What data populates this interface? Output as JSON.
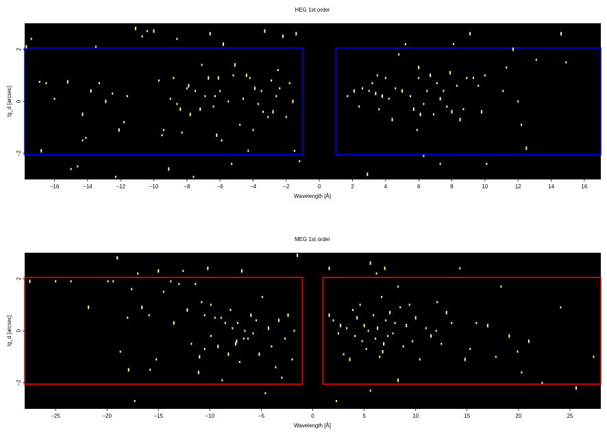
{
  "chart_data": [
    {
      "type": "scatter",
      "title": "HEG 1st order",
      "xlabel": "Wavelength [Å]",
      "ylabel": "tg_d [arcsec]",
      "xlim": [
        -17.8,
        17.0
      ],
      "ylim": [
        -3.0,
        3.0
      ],
      "xticks": [
        -16,
        -14,
        -12,
        -10,
        -8,
        -6,
        -4,
        -2,
        0,
        2,
        4,
        6,
        8,
        10,
        12,
        14,
        16
      ],
      "yticks": [
        -2,
        0,
        2
      ],
      "background": "#000000",
      "point_color": "#ffff80",
      "region_color": "#0000ff",
      "regions": [
        {
          "x": [
            -17.8,
            -1.0
          ],
          "y": [
            -2.05,
            2.05
          ]
        },
        {
          "x": [
            1.0,
            17.0
          ],
          "y": [
            -2.05,
            2.05
          ]
        }
      ],
      "points": [
        [
          -17.7,
          2.1
        ],
        [
          -17.4,
          2.4
        ],
        [
          -16.9,
          0.75
        ],
        [
          -16.8,
          -1.9
        ],
        [
          -16.5,
          0.7
        ],
        [
          -16.0,
          0.1
        ],
        [
          -15.2,
          0.75
        ],
        [
          -15.0,
          -2.6
        ],
        [
          -14.6,
          -2.5
        ],
        [
          -14.3,
          -0.5
        ],
        [
          -14.3,
          -1.5
        ],
        [
          -14.1,
          -1.4
        ],
        [
          -13.8,
          0.4
        ],
        [
          -13.5,
          2.1
        ],
        [
          -13.3,
          0.7
        ],
        [
          -12.9,
          0.0
        ],
        [
          -12.5,
          0.3
        ],
        [
          -12.3,
          -2.9
        ],
        [
          -12.1,
          -1.1
        ],
        [
          -11.8,
          -0.8
        ],
        [
          -11.6,
          0.2
        ],
        [
          -11.1,
          2.8
        ],
        [
          -10.7,
          2.5
        ],
        [
          -10.4,
          2.7
        ],
        [
          -10.0,
          2.7
        ],
        [
          -9.7,
          0.8
        ],
        [
          -9.4,
          -1.1
        ],
        [
          -9.1,
          -2.6
        ],
        [
          -9.0,
          0.1
        ],
        [
          -8.6,
          -0.1
        ],
        [
          -8.4,
          -0.3
        ],
        [
          -8.3,
          -1.2
        ],
        [
          -8.0,
          0.5
        ],
        [
          -7.8,
          -0.5
        ],
        [
          -7.6,
          -2.9
        ],
        [
          -7.5,
          0.4
        ],
        [
          -7.2,
          -0.3
        ],
        [
          -7.1,
          1.4
        ],
        [
          -6.9,
          0.2
        ],
        [
          -6.6,
          2.6
        ],
        [
          -6.4,
          -0.2
        ],
        [
          -6.3,
          0.2
        ],
        [
          -6.1,
          0.9
        ],
        [
          -6.0,
          0.4
        ],
        [
          -5.9,
          -1.5
        ],
        [
          -5.8,
          2.2
        ],
        [
          -5.5,
          0.0
        ],
        [
          -5.3,
          -2.4
        ],
        [
          -5.1,
          1.4
        ],
        [
          -4.8,
          -0.9
        ],
        [
          -4.6,
          0.1
        ],
        [
          -4.4,
          1.0
        ],
        [
          -4.2,
          0.9
        ],
        [
          -4.0,
          -1.1
        ],
        [
          -3.9,
          0.5
        ],
        [
          -3.7,
          -0.1
        ],
        [
          -3.5,
          0.4
        ],
        [
          -3.3,
          2.7
        ],
        [
          -3.1,
          -0.6
        ],
        [
          -2.9,
          0.8
        ],
        [
          -2.8,
          -0.4
        ],
        [
          -2.6,
          0.2
        ],
        [
          -2.4,
          0.5
        ],
        [
          -2.2,
          2.5
        ],
        [
          -2.0,
          -0.6
        ],
        [
          -1.8,
          0.7
        ],
        [
          -1.6,
          0.0
        ],
        [
          -1.5,
          -1.9
        ],
        [
          -1.2,
          -2.3
        ],
        [
          -1.4,
          2.6
        ],
        [
          -2.5,
          1.2
        ],
        [
          -4.3,
          -1.9
        ],
        [
          -6.2,
          -1.3
        ],
        [
          -8.6,
          2.4
        ],
        [
          -9.5,
          -1.3
        ],
        [
          -6.7,
          0.9
        ],
        [
          -5.2,
          1.0
        ],
        [
          -3.4,
          -0.4
        ],
        [
          -7.9,
          0.6
        ],
        [
          -8.8,
          0.9
        ],
        [
          1.7,
          0.2
        ],
        [
          2.1,
          0.4
        ],
        [
          2.4,
          -0.2
        ],
        [
          2.6,
          0.5
        ],
        [
          2.9,
          -2.8
        ],
        [
          3.0,
          0.4
        ],
        [
          3.2,
          0.7
        ],
        [
          3.4,
          0.3
        ],
        [
          3.5,
          1.0
        ],
        [
          3.6,
          -0.3
        ],
        [
          3.8,
          0.2
        ],
        [
          4.0,
          0.9
        ],
        [
          4.2,
          0.1
        ],
        [
          4.4,
          -0.7
        ],
        [
          4.6,
          0.5
        ],
        [
          4.8,
          1.8
        ],
        [
          5.0,
          0.4
        ],
        [
          5.2,
          2.2
        ],
        [
          5.5,
          0.2
        ],
        [
          5.7,
          -0.3
        ],
        [
          5.9,
          -1.1
        ],
        [
          6.0,
          0.9
        ],
        [
          6.1,
          -0.5
        ],
        [
          6.3,
          -2.1
        ],
        [
          6.5,
          0.4
        ],
        [
          6.7,
          1.0
        ],
        [
          6.9,
          -0.5
        ],
        [
          7.1,
          0.7
        ],
        [
          7.3,
          0.1
        ],
        [
          7.5,
          0.4
        ],
        [
          7.7,
          -0.2
        ],
        [
          7.9,
          1.1
        ],
        [
          8.1,
          2.2
        ],
        [
          8.3,
          0.6
        ],
        [
          8.5,
          -0.7
        ],
        [
          8.7,
          -0.3
        ],
        [
          8.9,
          0.9
        ],
        [
          9.1,
          2.6
        ],
        [
          9.3,
          0.9
        ],
        [
          9.6,
          0.6
        ],
        [
          9.8,
          -0.4
        ],
        [
          10.1,
          -2.4
        ],
        [
          11.1,
          0.4
        ],
        [
          11.7,
          2.0
        ],
        [
          12.0,
          0.0
        ],
        [
          12.2,
          -0.9
        ],
        [
          12.5,
          -1.8
        ],
        [
          13.1,
          1.6
        ],
        [
          14.9,
          1.5
        ],
        [
          14.6,
          2.6
        ],
        [
          10.0,
          1.0
        ],
        [
          11.3,
          1.3
        ],
        [
          6.0,
          1.3
        ],
        [
          7.3,
          -2.4
        ],
        [
          6.3,
          -0.1
        ],
        [
          8.0,
          -0.4
        ]
      ]
    },
    {
      "type": "scatter",
      "title": "MEG 1st order",
      "xlabel": "Wavelength [Å]",
      "ylabel": "tg_d [arcsec]",
      "xlim": [
        -28.0,
        28.0
      ],
      "ylim": [
        -3.0,
        3.0
      ],
      "xticks": [
        -25,
        -20,
        -15,
        -10,
        -5,
        0,
        5,
        10,
        15,
        20,
        25
      ],
      "yticks": [
        -2,
        0,
        2
      ],
      "background": "#000000",
      "point_color": "#ffff80",
      "region_color": "#ff0000",
      "regions": [
        {
          "x": [
            -28.0,
            -1.0
          ],
          "y": [
            -2.05,
            2.05
          ]
        },
        {
          "x": [
            1.0,
            28.0
          ],
          "y": [
            -2.05,
            2.05
          ]
        }
      ],
      "points": [
        [
          -27.5,
          1.9
        ],
        [
          -25.0,
          1.9
        ],
        [
          -23.5,
          1.9
        ],
        [
          -21.8,
          0.9
        ],
        [
          -19.9,
          1.9
        ],
        [
          -19.4,
          1.9
        ],
        [
          -19.0,
          2.8
        ],
        [
          -18.7,
          -0.8
        ],
        [
          -18.0,
          0.5
        ],
        [
          -17.9,
          -1.5
        ],
        [
          -17.6,
          1.6
        ],
        [
          -17.3,
          -2.7
        ],
        [
          -16.6,
          0.9
        ],
        [
          -15.8,
          -1.5
        ],
        [
          -15.2,
          -1.1
        ],
        [
          -15.0,
          2.3
        ],
        [
          -14.5,
          1.5
        ],
        [
          -13.8,
          1.9
        ],
        [
          -13.5,
          0.3
        ],
        [
          -13.0,
          1.8
        ],
        [
          -12.6,
          2.3
        ],
        [
          -12.2,
          0.8
        ],
        [
          -11.8,
          -0.5
        ],
        [
          -11.4,
          1.8
        ],
        [
          -11.0,
          -1.0
        ],
        [
          -10.8,
          1.1
        ],
        [
          -10.5,
          0.6
        ],
        [
          -10.2,
          2.4
        ],
        [
          -9.9,
          -0.2
        ],
        [
          -9.5,
          0.5
        ],
        [
          -9.2,
          -0.6
        ],
        [
          -8.8,
          -1.9
        ],
        [
          -8.5,
          0.3
        ],
        [
          -8.2,
          -0.9
        ],
        [
          -8.0,
          0.8
        ],
        [
          -7.8,
          0.1
        ],
        [
          -7.5,
          -0.5
        ],
        [
          -7.3,
          0.3
        ],
        [
          -7.1,
          -1.2
        ],
        [
          -6.9,
          2.3
        ],
        [
          -6.6,
          0.0
        ],
        [
          -6.3,
          -0.3
        ],
        [
          -6.0,
          0.6
        ],
        [
          -5.8,
          -0.1
        ],
        [
          -5.5,
          0.4
        ],
        [
          -5.2,
          -0.9
        ],
        [
          -4.9,
          1.3
        ],
        [
          -4.6,
          -2.4
        ],
        [
          -4.3,
          0.1
        ],
        [
          -4.0,
          -0.6
        ],
        [
          -3.6,
          -1.4
        ],
        [
          -3.3,
          0.4
        ],
        [
          -3.0,
          -1.8
        ],
        [
          -2.7,
          -0.3
        ],
        [
          -2.4,
          0.6
        ],
        [
          -2.0,
          -1.1
        ],
        [
          -1.8,
          0.0
        ],
        [
          -1.5,
          2.9
        ],
        [
          -9.9,
          1.0
        ],
        [
          -6.7,
          -0.3
        ],
        [
          -7.4,
          -0.4
        ],
        [
          -8.9,
          0.5
        ],
        [
          -10.5,
          -0.7
        ],
        [
          -11.1,
          -1.6
        ],
        [
          -15.9,
          0.6
        ],
        [
          -17.0,
          2.2
        ],
        [
          1.6,
          0.6
        ],
        [
          2.0,
          0.4
        ],
        [
          2.5,
          -0.1
        ],
        [
          2.7,
          0.2
        ],
        [
          3.0,
          -0.9
        ],
        [
          3.3,
          0.1
        ],
        [
          3.6,
          -1.1
        ],
        [
          3.9,
          0.8
        ],
        [
          4.1,
          -0.2
        ],
        [
          4.3,
          0.5
        ],
        [
          4.6,
          1.0
        ],
        [
          4.8,
          -0.4
        ],
        [
          5.0,
          0.2
        ],
        [
          5.2,
          -0.7
        ],
        [
          5.4,
          0.0
        ],
        [
          5.6,
          2.6
        ],
        [
          5.9,
          0.6
        ],
        [
          6.1,
          -0.3
        ],
        [
          6.3,
          0.1
        ],
        [
          6.5,
          -1.0
        ],
        [
          6.7,
          1.3
        ],
        [
          6.9,
          -0.5
        ],
        [
          7.1,
          0.4
        ],
        [
          7.3,
          -0.2
        ],
        [
          7.5,
          0.7
        ],
        [
          7.8,
          -0.1
        ],
        [
          8.0,
          0.3
        ],
        [
          8.3,
          -1.9
        ],
        [
          8.5,
          0.9
        ],
        [
          8.8,
          -0.6
        ],
        [
          9.1,
          0.2
        ],
        [
          9.4,
          1.0
        ],
        [
          9.7,
          -0.4
        ],
        [
          10.0,
          0.5
        ],
        [
          10.4,
          -1.1
        ],
        [
          11.0,
          0.1
        ],
        [
          11.5,
          -0.2
        ],
        [
          12.0,
          0.0
        ],
        [
          12.5,
          -0.5
        ],
        [
          13.0,
          0.7
        ],
        [
          13.5,
          0.3
        ],
        [
          14.3,
          2.4
        ],
        [
          14.8,
          -1.1
        ],
        [
          15.3,
          -0.7
        ],
        [
          15.9,
          0.3
        ],
        [
          17.0,
          0.2
        ],
        [
          17.8,
          -1.0
        ],
        [
          18.3,
          1.7
        ],
        [
          19.1,
          -0.2
        ],
        [
          19.9,
          -0.8
        ],
        [
          20.3,
          -1.6
        ],
        [
          21.0,
          -0.4
        ],
        [
          22.3,
          -2.0
        ],
        [
          24.1,
          0.9
        ],
        [
          25.6,
          -2.2
        ],
        [
          27.3,
          -1.0
        ],
        [
          6.2,
          2.2
        ],
        [
          7.0,
          2.4
        ],
        [
          5.6,
          -2.3
        ],
        [
          2.3,
          -2.7
        ],
        [
          1.6,
          2.4
        ],
        [
          12.1,
          1.1
        ],
        [
          8.3,
          1.7
        ],
        [
          6.8,
          -0.8
        ]
      ]
    }
  ]
}
